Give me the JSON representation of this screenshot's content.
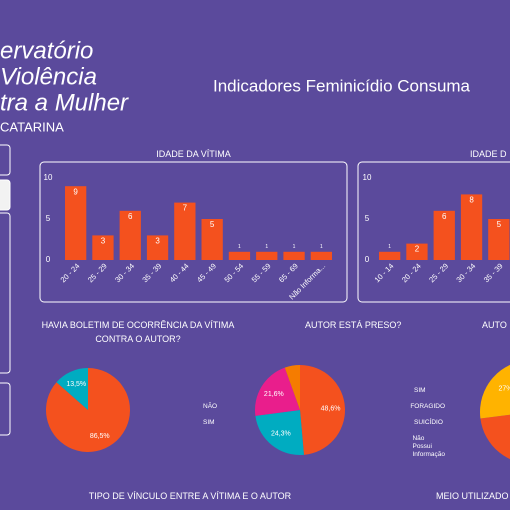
{
  "header": {
    "logo_lines": [
      "ervatório",
      "Violência",
      "tra a Mulher",
      "CATARINA"
    ],
    "title": "Indicadores Feminicídio Consuma"
  },
  "sections": [
    "TIPO DE VÍNCULO ENTRE A VÍTIMA E O AUTOR",
    "MEIO UTILIZADO"
  ],
  "chart_data": [
    {
      "type": "bar",
      "title": "IDADE DA VÍTIMA",
      "categories": [
        "20 - 24",
        "25 - 29",
        "30 - 34",
        "35 - 39",
        "40 - 44",
        "45 - 49",
        "50 - 54",
        "55 - 59",
        "65 - 69",
        "Não Informa..."
      ],
      "values": [
        9,
        3,
        6,
        3,
        7,
        5,
        1,
        1,
        1,
        1
      ],
      "color": "#f4511e",
      "ylim": [
        0,
        10
      ],
      "yticks": [
        0,
        5,
        10
      ]
    },
    {
      "type": "bar",
      "title": "IDADE D",
      "categories": [
        "10 - 14",
        "20 - 24",
        "25 - 29",
        "30 - 34",
        "35 - 39"
      ],
      "values": [
        1,
        2,
        6,
        8,
        5
      ],
      "color": "#f4511e",
      "ylim": [
        0,
        10
      ],
      "yticks": [
        0,
        5,
        10
      ]
    },
    {
      "type": "pie",
      "title": "HAVIA BOLETIM DE OCORRÊNCIA DA VÍTIMA CONTRA O AUTOR?",
      "categories": [
        "NÃO",
        "SIM"
      ],
      "values": [
        86.5,
        13.5
      ],
      "value_labels": [
        "86,5%",
        "13,5%"
      ],
      "colors": [
        "#f4511e",
        "#00acc1"
      ]
    },
    {
      "type": "pie",
      "title": "AUTOR ESTÁ PRESO?",
      "categories": [
        "SIM",
        "FORAGIDO",
        "SUICÍDIO",
        "Não Possui Informação"
      ],
      "values": [
        48.6,
        24.3,
        21.6,
        5.5
      ],
      "value_labels": [
        "48,6%",
        "24,3%",
        "21,6%",
        null
      ],
      "colors": [
        "#f4511e",
        "#00acc1",
        "#e91e8c",
        "#f57c00"
      ]
    },
    {
      "type": "pie",
      "title": "AUTO",
      "values": [
        73,
        27
      ],
      "value_labels": [
        null,
        "27%"
      ],
      "colors": [
        "#f4511e",
        "#ffb300"
      ]
    }
  ]
}
